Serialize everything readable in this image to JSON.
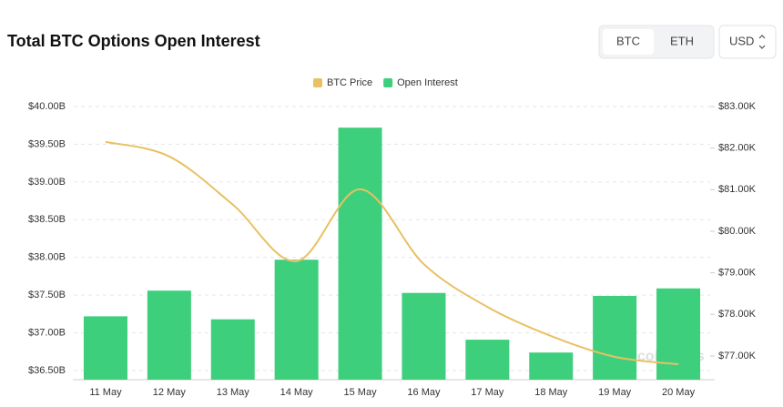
{
  "chart_data": {
    "type": "bar",
    "title": "Total BTC Options Open Interest",
    "categories": [
      "11 May",
      "12 May",
      "13 May",
      "14 May",
      "15 May",
      "16 May",
      "17 May",
      "18 May",
      "19 May",
      "20 May"
    ],
    "series": [
      {
        "name": "BTC Price",
        "type": "line",
        "axis": "y2",
        "color": "#e9c063",
        "values": [
          82.15,
          81.8,
          80.64,
          79.28,
          81.01,
          79.21,
          78.18,
          77.48,
          76.98,
          76.8
        ]
      },
      {
        "name": "Open Interest",
        "type": "bar",
        "color": "#3ecf7d",
        "values": [
          37.22,
          37.56,
          37.18,
          37.97,
          39.72,
          37.53,
          36.91,
          36.74,
          37.49,
          37.59
        ]
      }
    ],
    "ylim": [
      36.38,
      40.0
    ],
    "yticks": [
      {
        "value": 36.5,
        "label": "$36.50B"
      },
      {
        "value": 37.0,
        "label": "$37.00B"
      },
      {
        "value": 37.5,
        "label": "$37.50B"
      },
      {
        "value": 38.0,
        "label": "$38.00B"
      },
      {
        "value": 38.5,
        "label": "$38.50B"
      },
      {
        "value": 39.0,
        "label": "$39.00B"
      },
      {
        "value": 39.5,
        "label": "$39.50B"
      },
      {
        "value": 40.0,
        "label": "$40.00B"
      }
    ],
    "y2lim": [
      76.43,
      83.0
    ],
    "y2ticks": [
      {
        "value": 77,
        "label": "$77.00K"
      },
      {
        "value": 78,
        "label": "$78.00K"
      },
      {
        "value": 79,
        "label": "$79.00K"
      },
      {
        "value": 80,
        "label": "$80.00K"
      },
      {
        "value": 81,
        "label": "$81.00K"
      },
      {
        "value": 82,
        "label": "$82.00K"
      },
      {
        "value": 83,
        "label": "$83.00K"
      }
    ],
    "grid": true,
    "legend": "top",
    "watermark": "coinglass"
  },
  "controls": {
    "coins": [
      "BTC",
      "ETH"
    ],
    "currency": "USD"
  }
}
